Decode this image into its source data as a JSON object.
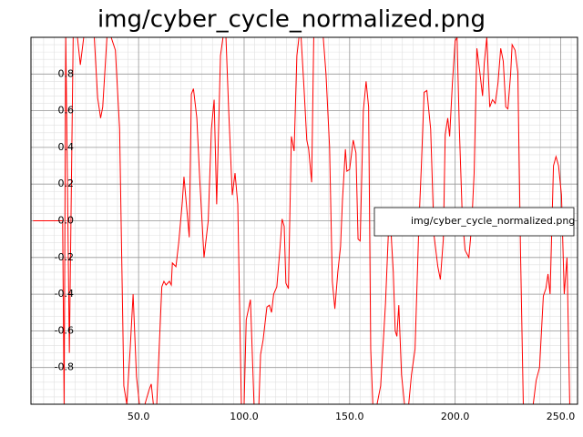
{
  "chart_data": {
    "type": "line",
    "title": "img/cyber_cycle_normalized.png",
    "x": [
      0,
      14,
      14.7,
      15.5,
      17.2,
      19,
      21,
      22.4,
      24,
      29,
      30.6,
      32,
      33,
      35,
      37,
      39,
      41,
      43,
      44.4,
      46,
      47.4,
      49,
      50.4,
      53,
      55,
      56,
      57,
      58.6,
      61,
      62,
      63,
      64.6,
      65.5,
      66,
      67.7,
      69,
      70.7,
      71.5,
      72.8,
      74,
      75,
      76,
      77.6,
      79,
      81,
      83,
      84.5,
      85.8,
      87,
      88.8,
      90,
      91.4,
      92.7,
      94.4,
      95.7,
      97,
      98.7,
      100,
      101,
      103,
      104.7,
      107,
      107.8,
      109,
      110.8,
      112,
      113,
      114,
      115.5,
      117,
      118,
      119,
      119.8,
      121,
      122.4,
      123.7,
      125,
      126,
      127,
      128.4,
      129.7,
      130.6,
      132,
      133,
      135,
      137.5,
      138.8,
      140.5,
      141.8,
      143,
      144.4,
      145.7,
      146.6,
      148,
      148.7,
      150,
      151.7,
      153,
      154,
      155,
      156.5,
      157.8,
      159,
      160,
      161,
      163,
      164.7,
      166,
      167,
      168.5,
      169.4,
      170.7,
      171.6,
      172.4,
      173.3,
      174.6,
      176,
      178,
      179.3,
      181,
      182.8,
      184,
      185.3,
      186.6,
      188.4,
      190,
      191.8,
      193,
      194.4,
      195.3,
      196.5,
      197.4,
      198.7,
      200,
      200.9,
      202,
      203.4,
      204.7,
      206.5,
      207.8,
      209,
      210.3,
      211.6,
      213,
      213.8,
      215,
      216.4,
      217.7,
      219,
      220.3,
      221.6,
      222.8,
      224,
      225,
      226.3,
      227,
      228.4,
      229.7,
      231,
      232.3,
      234.5,
      237,
      238.4,
      240,
      241.8,
      243,
      244,
      245,
      246.6,
      247.8,
      249,
      250.4,
      251.7,
      253,
      254.3,
      256
    ],
    "series": [
      {
        "name": "img/cyber_cycle_normalized.png",
        "color": "#ff0000",
        "values": [
          0,
          0,
          -1,
          1,
          -0.72,
          1,
          1,
          0.85,
          1,
          1,
          0.67,
          0.56,
          0.62,
          1,
          1,
          0.93,
          0.5,
          -0.9,
          -1,
          -0.7,
          -0.4,
          -0.85,
          -1,
          -1,
          -0.92,
          -0.89,
          -1,
          -1,
          -0.36,
          -0.33,
          -0.35,
          -0.33,
          -0.35,
          -0.23,
          -0.25,
          -0.12,
          0.1,
          0.24,
          0.07,
          -0.09,
          0.69,
          0.72,
          0.56,
          0.22,
          -0.2,
          0.0,
          0.5,
          0.66,
          0.09,
          0.9,
          1,
          1,
          0.6,
          0.14,
          0.26,
          0.09,
          -1,
          -1,
          -0.54,
          -0.43,
          -1,
          -1,
          -0.73,
          -0.65,
          -0.47,
          -0.46,
          -0.5,
          -0.4,
          -0.36,
          -0.15,
          0.01,
          -0.03,
          -0.34,
          -0.37,
          0.46,
          0.38,
          0.9,
          1,
          1,
          0.72,
          0.44,
          0.39,
          0.21,
          1,
          1,
          1,
          0.8,
          0.4,
          -0.33,
          -0.48,
          -0.28,
          -0.14,
          0.11,
          0.39,
          0.27,
          0.28,
          0.44,
          0.37,
          -0.1,
          -0.11,
          0.6,
          0.76,
          0.62,
          -0.7,
          -1,
          -1,
          -0.9,
          -0.65,
          -0.45,
          -0.03,
          -0.02,
          -0.28,
          -0.6,
          -0.63,
          -0.46,
          -0.84,
          -1,
          -1,
          -0.84,
          -0.7,
          -0.03,
          0.3,
          0.7,
          0.71,
          0.5,
          -0.08,
          -0.25,
          -0.32,
          -0.1,
          0.47,
          0.56,
          0.46,
          0.75,
          0.98,
          1,
          0.5,
          0.02,
          -0.16,
          -0.2,
          -0.03,
          0.26,
          0.94,
          0.82,
          0.68,
          0.86,
          1,
          0.62,
          0.66,
          0.64,
          0.75,
          0.94,
          0.87,
          0.62,
          0.61,
          0.8,
          0.96,
          0.93,
          0.81,
          -0.18,
          -1,
          -1,
          -1,
          -0.87,
          -0.8,
          -0.41,
          -0.37,
          -0.29,
          -0.4,
          0.3,
          0.35,
          0.3,
          0.14,
          -0.4,
          -0.2,
          -1,
          -1
        ]
      }
    ],
    "xlim": [
      -1,
      258
    ],
    "ylim": [
      -1,
      1
    ],
    "xticks": [
      {
        "value": 50,
        "label": "50.0"
      },
      {
        "value": 100,
        "label": "100.0"
      },
      {
        "value": 150,
        "label": "150.0"
      },
      {
        "value": 200,
        "label": "200.0"
      },
      {
        "value": 250,
        "label": "250.0"
      }
    ],
    "yticks": [
      -0.8,
      -0.6,
      -0.4,
      -0.2,
      {
        "value": 0,
        "label": "0.0"
      },
      0.2,
      0.4,
      0.6,
      0.8
    ],
    "grid": true,
    "minor_grid": true,
    "legend": "right"
  }
}
